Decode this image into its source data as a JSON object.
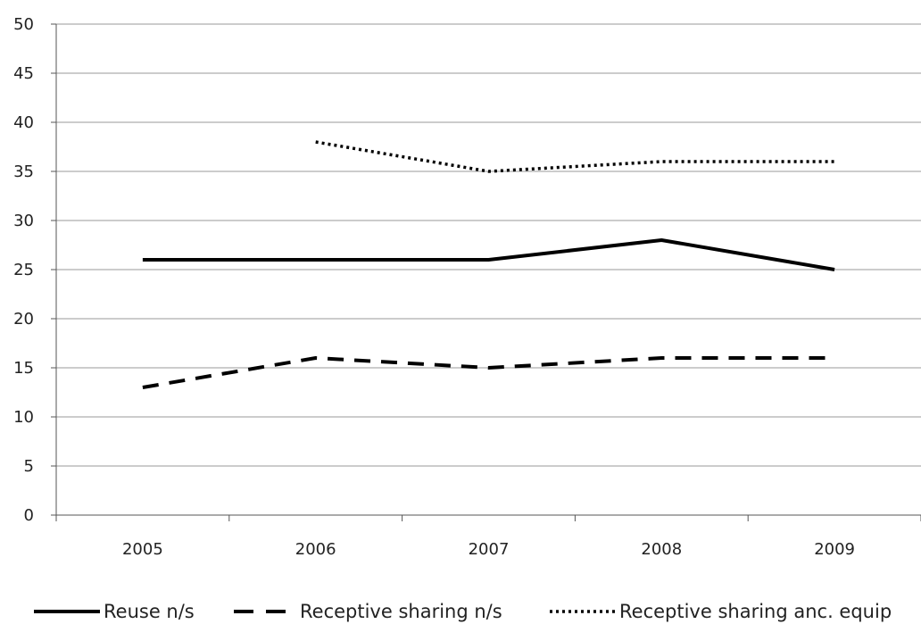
{
  "chart_data": {
    "type": "line",
    "title": "",
    "xlabel": "",
    "ylabel": "",
    "categories": [
      "2005",
      "2006",
      "2007",
      "2008",
      "2009"
    ],
    "ylim": [
      0,
      50
    ],
    "yticks": [
      0,
      5,
      10,
      15,
      20,
      25,
      30,
      35,
      40,
      45,
      50
    ],
    "grid": true,
    "legend_position": "bottom",
    "series": [
      {
        "name": "Reuse n/s",
        "style": "solid",
        "values": [
          26,
          26,
          26,
          28,
          25
        ]
      },
      {
        "name": "Receptive sharing n/s",
        "style": "dashed",
        "values": [
          13,
          16,
          15,
          16,
          16
        ]
      },
      {
        "name": "Receptive sharing anc. equip",
        "style": "dotted",
        "values": [
          null,
          38,
          35,
          36,
          36
        ]
      }
    ],
    "colors": {
      "line": "#000000",
      "grid": "#9a9a9a",
      "axis": "#555555"
    }
  }
}
